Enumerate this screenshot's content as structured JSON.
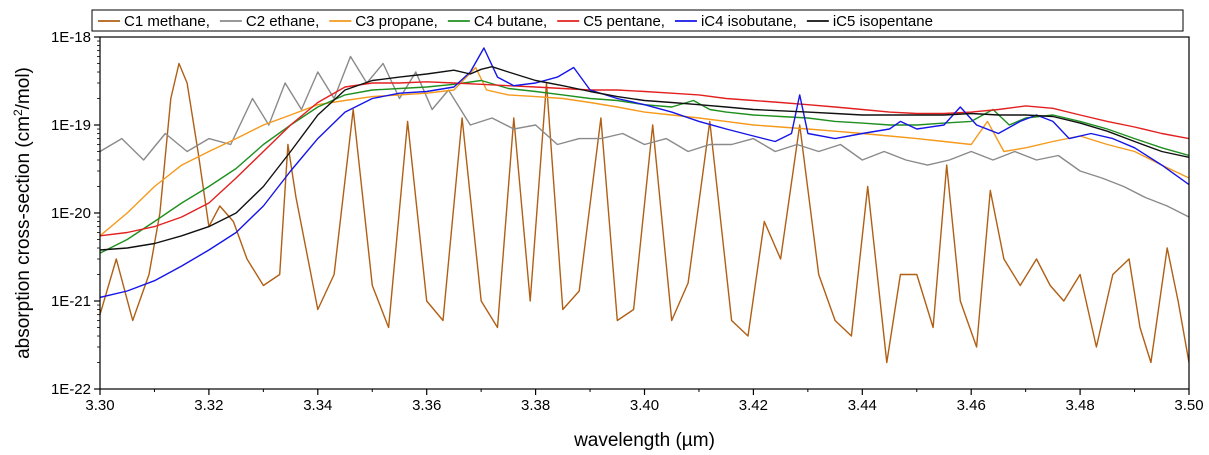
{
  "chart_data": {
    "type": "line",
    "xlabel": "wavelength (µm)",
    "ylabel_pre": "absorption cross-section (cm",
    "ylabel_sup": "2",
    "ylabel_post": "/mol)",
    "xlim": [
      3.3,
      3.5
    ],
    "ylim": [
      1e-22,
      1e-18
    ],
    "yscale": "log",
    "grid": false,
    "legend_position": "top",
    "x_ticks": [
      3.3,
      3.32,
      3.34,
      3.36,
      3.38,
      3.4,
      3.42,
      3.44,
      3.46,
      3.48,
      3.5
    ],
    "x_tick_labels": [
      "3.30",
      "3.32",
      "3.34",
      "3.36",
      "3.38",
      "3.40",
      "3.42",
      "3.44",
      "3.46",
      "3.48",
      "3.50"
    ],
    "y_ticks": [
      1e-22,
      1e-21,
      1e-20,
      1e-19,
      1e-18
    ],
    "y_tick_labels": [
      "1E-22",
      "1E-21",
      "1E-20",
      "1E-19",
      "1E-18"
    ],
    "series": [
      {
        "name": "C1 methane,",
        "color": "#b05f14",
        "x": [
          3.3,
          3.303,
          3.306,
          3.309,
          3.311,
          3.313,
          3.3145,
          3.316,
          3.318,
          3.32,
          3.322,
          3.3245,
          3.327,
          3.33,
          3.333,
          3.3345,
          3.336,
          3.34,
          3.343,
          3.3465,
          3.35,
          3.353,
          3.3565,
          3.36,
          3.363,
          3.3665,
          3.37,
          3.373,
          3.376,
          3.379,
          3.382,
          3.385,
          3.388,
          3.392,
          3.395,
          3.398,
          3.4015,
          3.405,
          3.408,
          3.412,
          3.416,
          3.419,
          3.422,
          3.425,
          3.4285,
          3.432,
          3.435,
          3.438,
          3.441,
          3.4445,
          3.447,
          3.45,
          3.453,
          3.4555,
          3.458,
          3.461,
          3.4635,
          3.466,
          3.469,
          3.472,
          3.4745,
          3.477,
          3.48,
          3.483,
          3.486,
          3.489,
          3.491,
          3.493,
          3.496,
          3.498,
          3.5
        ],
        "y": [
          7e-22,
          3e-21,
          6e-22,
          2e-21,
          1e-20,
          2e-19,
          5e-19,
          3e-19,
          5e-20,
          7e-21,
          1.2e-20,
          8e-21,
          3e-21,
          1.5e-21,
          2e-21,
          6e-20,
          1.5e-20,
          8e-22,
          2e-21,
          1.5e-19,
          1.5e-21,
          5e-22,
          1.1e-19,
          1e-21,
          6e-22,
          1.2e-19,
          1e-21,
          5e-22,
          1.2e-19,
          1e-21,
          3e-19,
          8e-22,
          1.3e-21,
          1.2e-19,
          6e-22,
          8e-22,
          1e-19,
          6e-22,
          1.6e-21,
          1.1e-19,
          6e-22,
          4e-22,
          8e-21,
          3e-21,
          1e-19,
          2e-21,
          6e-22,
          4e-22,
          2e-20,
          2e-22,
          2e-21,
          2e-21,
          5e-22,
          3.5e-20,
          1e-21,
          3e-22,
          1.8e-20,
          3e-21,
          1.5e-21,
          3e-21,
          1.5e-21,
          1e-21,
          2e-21,
          3e-22,
          2e-21,
          3e-21,
          5e-22,
          2e-22,
          4e-21,
          1e-21,
          2e-22
        ]
      },
      {
        "name": "C2 ethane,",
        "color": "#8a8a8a",
        "x": [
          3.3,
          3.304,
          3.308,
          3.312,
          3.316,
          3.32,
          3.324,
          3.328,
          3.331,
          3.334,
          3.337,
          3.34,
          3.343,
          3.346,
          3.349,
          3.352,
          3.355,
          3.358,
          3.361,
          3.364,
          3.368,
          3.372,
          3.376,
          3.38,
          3.384,
          3.388,
          3.392,
          3.396,
          3.4,
          3.404,
          3.408,
          3.412,
          3.416,
          3.42,
          3.424,
          3.428,
          3.432,
          3.436,
          3.44,
          3.444,
          3.448,
          3.452,
          3.456,
          3.46,
          3.464,
          3.468,
          3.472,
          3.476,
          3.48,
          3.484,
          3.488,
          3.492,
          3.496,
          3.5
        ],
        "y": [
          5e-20,
          7e-20,
          4e-20,
          8e-20,
          5e-20,
          7e-20,
          6e-20,
          2e-19,
          1e-19,
          3e-19,
          1.5e-19,
          4e-19,
          2e-19,
          6e-19,
          3e-19,
          5e-19,
          2e-19,
          4e-19,
          1.5e-19,
          2.5e-19,
          1e-19,
          1.2e-19,
          9e-20,
          1e-19,
          6e-20,
          7e-20,
          7e-20,
          8e-20,
          6e-20,
          7e-20,
          5e-20,
          6e-20,
          6e-20,
          7e-20,
          5e-20,
          6e-20,
          5e-20,
          6e-20,
          4e-20,
          5e-20,
          4e-20,
          3.5e-20,
          4e-20,
          5e-20,
          4e-20,
          5e-20,
          4e-20,
          4.5e-20,
          3e-20,
          2.5e-20,
          2e-20,
          1.5e-20,
          1.2e-20,
          9e-21
        ]
      },
      {
        "name": "C3 propane,",
        "color": "#f59a1c",
        "x": [
          3.3,
          3.305,
          3.31,
          3.315,
          3.32,
          3.325,
          3.33,
          3.335,
          3.34,
          3.345,
          3.35,
          3.355,
          3.36,
          3.365,
          3.369,
          3.371,
          3.375,
          3.38,
          3.385,
          3.39,
          3.395,
          3.4,
          3.405,
          3.41,
          3.415,
          3.42,
          3.425,
          3.43,
          3.435,
          3.44,
          3.445,
          3.45,
          3.455,
          3.46,
          3.463,
          3.466,
          3.47,
          3.475,
          3.48,
          3.485,
          3.49,
          3.495,
          3.5
        ],
        "y": [
          5.5e-21,
          1e-20,
          2e-20,
          3.5e-20,
          5e-20,
          7e-20,
          1e-19,
          1.3e-19,
          1.7e-19,
          1.9e-19,
          2.1e-19,
          2.2e-19,
          2.3e-19,
          2.5e-19,
          4.5e-19,
          2.5e-19,
          2.2e-19,
          2.1e-19,
          2e-19,
          1.8e-19,
          1.6e-19,
          1.4e-19,
          1.3e-19,
          1.2e-19,
          1.1e-19,
          1e-19,
          9.5e-20,
          9e-20,
          8.5e-20,
          8e-20,
          7.5e-20,
          7e-20,
          6.5e-20,
          6e-20,
          1.1e-19,
          5e-20,
          5.5e-20,
          6.5e-20,
          7.5e-20,
          6e-20,
          5e-20,
          3.5e-20,
          2.5e-20
        ]
      },
      {
        "name": "C4 butane,",
        "color": "#1f8f1f",
        "x": [
          3.3,
          3.305,
          3.31,
          3.315,
          3.32,
          3.325,
          3.33,
          3.335,
          3.34,
          3.345,
          3.35,
          3.355,
          3.36,
          3.365,
          3.37,
          3.375,
          3.38,
          3.385,
          3.39,
          3.395,
          3.4,
          3.405,
          3.409,
          3.412,
          3.415,
          3.42,
          3.425,
          3.43,
          3.435,
          3.44,
          3.445,
          3.45,
          3.455,
          3.46,
          3.464,
          3.467,
          3.47,
          3.475,
          3.48,
          3.485,
          3.49,
          3.495,
          3.5
        ],
        "y": [
          3.5e-21,
          5e-21,
          8e-21,
          1.3e-20,
          2e-20,
          3.2e-20,
          6e-20,
          1e-19,
          1.6e-19,
          2.2e-19,
          2.5e-19,
          2.6e-19,
          2.7e-19,
          2.9e-19,
          3.2e-19,
          2.6e-19,
          2.4e-19,
          2.2e-19,
          2e-19,
          1.9e-19,
          1.7e-19,
          1.6e-19,
          1.9e-19,
          1.5e-19,
          1.4e-19,
          1.3e-19,
          1.25e-19,
          1.2e-19,
          1.1e-19,
          1.05e-19,
          1e-19,
          1e-19,
          1.05e-19,
          1.1e-19,
          1.5e-19,
          1e-19,
          1.2e-19,
          1.3e-19,
          1.1e-19,
          9e-20,
          7e-20,
          5.5e-20,
          4.5e-20
        ]
      },
      {
        "name": "C5 pentane,",
        "color": "#e32020",
        "x": [
          3.3,
          3.305,
          3.31,
          3.315,
          3.32,
          3.325,
          3.33,
          3.335,
          3.34,
          3.345,
          3.35,
          3.355,
          3.36,
          3.365,
          3.37,
          3.375,
          3.38,
          3.385,
          3.39,
          3.395,
          3.4,
          3.405,
          3.41,
          3.415,
          3.42,
          3.425,
          3.43,
          3.435,
          3.44,
          3.445,
          3.45,
          3.455,
          3.46,
          3.465,
          3.47,
          3.475,
          3.48,
          3.485,
          3.49,
          3.495,
          3.5
        ],
        "y": [
          5.5e-21,
          6e-21,
          7e-21,
          9e-21,
          1.3e-20,
          2.5e-20,
          5e-20,
          1e-19,
          1.8e-19,
          2.7e-19,
          3e-19,
          3e-19,
          3.1e-19,
          3e-19,
          2.9e-19,
          2.8e-19,
          2.7e-19,
          2.6e-19,
          2.5e-19,
          2.5e-19,
          2.4e-19,
          2.3e-19,
          2.2e-19,
          2e-19,
          1.9e-19,
          1.8e-19,
          1.7e-19,
          1.6e-19,
          1.5e-19,
          1.4e-19,
          1.35e-19,
          1.35e-19,
          1.4e-19,
          1.5e-19,
          1.65e-19,
          1.55e-19,
          1.3e-19,
          1.1e-19,
          9.5e-20,
          8e-20,
          7e-20
        ]
      },
      {
        "name": "iC4 isobutane,",
        "color": "#1515e8",
        "x": [
          3.3,
          3.305,
          3.31,
          3.315,
          3.32,
          3.325,
          3.33,
          3.335,
          3.34,
          3.345,
          3.35,
          3.355,
          3.36,
          3.365,
          3.368,
          3.3705,
          3.373,
          3.376,
          3.38,
          3.384,
          3.387,
          3.39,
          3.395,
          3.4,
          3.405,
          3.41,
          3.415,
          3.42,
          3.424,
          3.427,
          3.4285,
          3.43,
          3.435,
          3.44,
          3.445,
          3.447,
          3.45,
          3.455,
          3.458,
          3.461,
          3.465,
          3.469,
          3.472,
          3.475,
          3.478,
          3.482,
          3.486,
          3.49,
          3.495,
          3.5
        ],
        "y": [
          1.1e-21,
          1.3e-21,
          1.7e-21,
          2.5e-21,
          3.8e-21,
          6e-21,
          1.2e-20,
          3e-20,
          7e-20,
          1.4e-19,
          2e-19,
          2.3e-19,
          2.4e-19,
          2.7e-19,
          4e-19,
          7.5e-19,
          3.5e-19,
          2.8e-19,
          3e-19,
          3.5e-19,
          4.5e-19,
          2.5e-19,
          2e-19,
          1.7e-19,
          1.4e-19,
          1.1e-19,
          9e-20,
          7.5e-20,
          6.5e-20,
          8e-20,
          2.2e-19,
          8e-20,
          7e-20,
          8e-20,
          9e-20,
          1.1e-19,
          9e-20,
          1e-19,
          1.6e-19,
          1e-19,
          8e-20,
          1.1e-19,
          1.3e-19,
          1.1e-19,
          7e-20,
          8e-20,
          7e-20,
          5.5e-20,
          3.5e-20,
          2.1e-20
        ]
      },
      {
        "name": "iC5 isopentane",
        "color": "#111111",
        "x": [
          3.3,
          3.305,
          3.31,
          3.315,
          3.32,
          3.325,
          3.33,
          3.335,
          3.34,
          3.345,
          3.35,
          3.355,
          3.36,
          3.365,
          3.368,
          3.37,
          3.372,
          3.375,
          3.38,
          3.385,
          3.39,
          3.395,
          3.4,
          3.405,
          3.41,
          3.415,
          3.42,
          3.425,
          3.43,
          3.435,
          3.44,
          3.445,
          3.45,
          3.455,
          3.46,
          3.465,
          3.47,
          3.475,
          3.48,
          3.485,
          3.49,
          3.495,
          3.5
        ],
        "y": [
          3.8e-21,
          4e-21,
          4.5e-21,
          5.5e-21,
          7e-21,
          1e-20,
          2e-20,
          5e-20,
          1.3e-19,
          2.5e-19,
          3.2e-19,
          3.5e-19,
          3.8e-19,
          4.2e-19,
          3.8e-19,
          4.3e-19,
          4.6e-19,
          4e-19,
          3.2e-19,
          2.8e-19,
          2.4e-19,
          2.1e-19,
          1.9e-19,
          1.8e-19,
          1.7e-19,
          1.6e-19,
          1.5e-19,
          1.45e-19,
          1.4e-19,
          1.35e-19,
          1.3e-19,
          1.3e-19,
          1.3e-19,
          1.3e-19,
          1.35e-19,
          1.3e-19,
          1.3e-19,
          1.25e-19,
          1.05e-19,
          8.5e-20,
          6.5e-20,
          5e-20,
          4.3e-20
        ]
      }
    ]
  }
}
